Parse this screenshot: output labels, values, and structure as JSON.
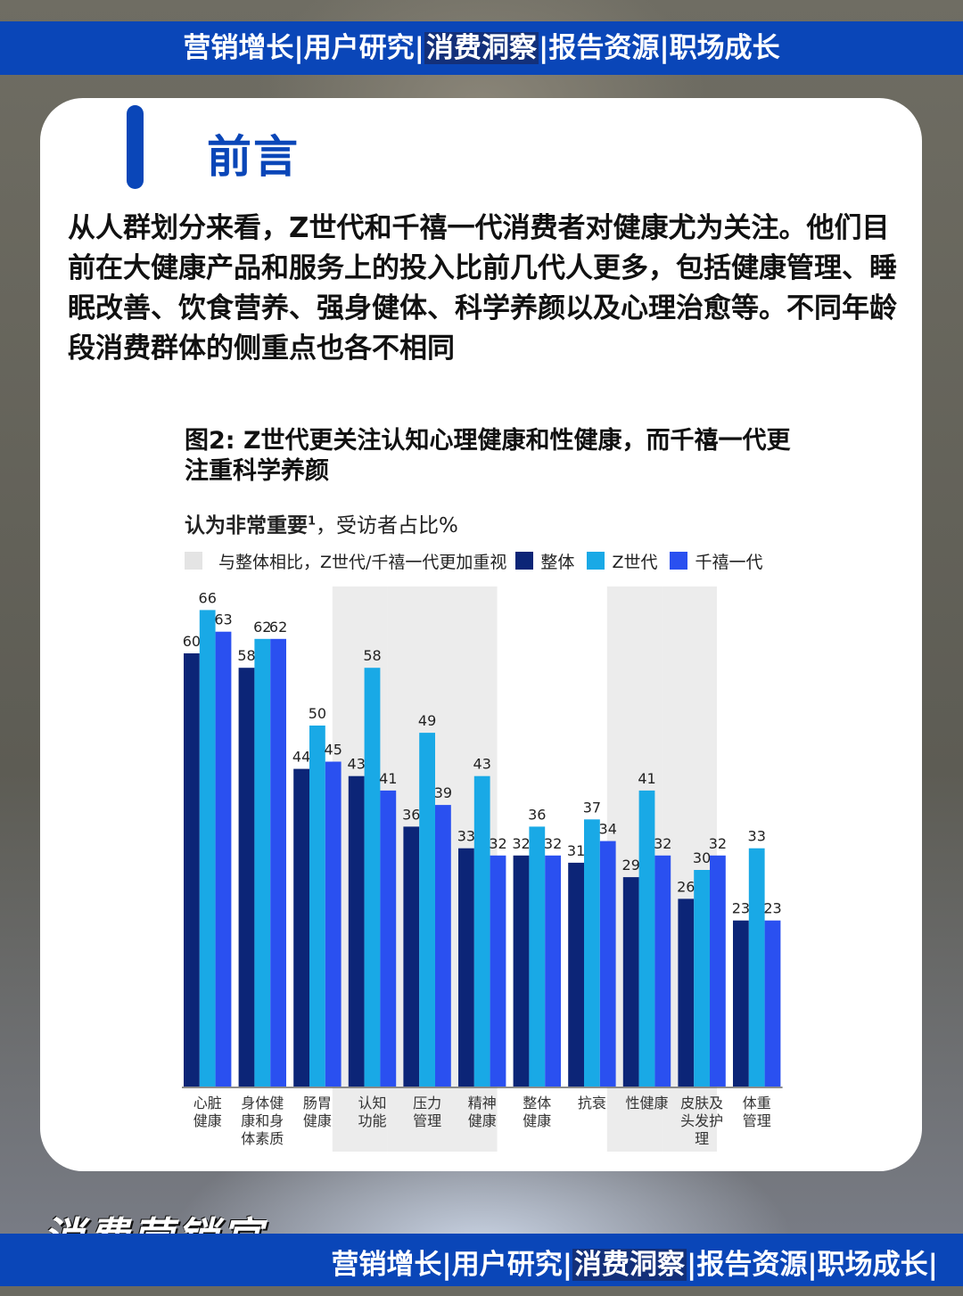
{
  "banner": {
    "pre": "营销增长|用户研究|",
    "highlight": "消费洞察",
    "post": "|报告资源|职场成长",
    "post_bottom": "|报告资源|职场成长|"
  },
  "heading": "前言",
  "intro": "从人群划分来看，Z世代和千禧一代消费者对健康尤为关注。他们目前在大健康产品和服务上的投入比前几代人更多，包括健康管理、睡眠改善、饮食营养、强身健体、科学养颜以及心理治愈等。不同年龄段消费群体的侧重点也各不相同",
  "watermark": "消费营销官",
  "colors": {
    "banner": "#0a46b8",
    "overall": "#0c2577",
    "genz": "#19a9e6",
    "millennial": "#2a50f0",
    "highlight_band": "#ececec"
  },
  "chart_data": {
    "type": "bar",
    "title": "图2: Z世代更关注认知心理健康和性健康，而千禧一代更注重科学养颜",
    "subtitle": "认为非常重要",
    "subtitle_sup": "1",
    "subtitle_unit": "，受访者占比%",
    "legend": {
      "highlight": "与整体相比，Z世代/千禧一代更加重视",
      "position": "top"
    },
    "categories": [
      [
        "心脏",
        "健康"
      ],
      [
        "身体健",
        "康和身",
        "体素质"
      ],
      [
        "肠胃",
        "健康"
      ],
      [
        "认知",
        "功能"
      ],
      [
        "压力",
        "管理"
      ],
      [
        "精神",
        "健康"
      ],
      [
        "整体",
        "健康"
      ],
      [
        "抗衰"
      ],
      [
        "性健康"
      ],
      [
        "皮肤及",
        "头发护",
        "理"
      ],
      [
        "体重",
        "管理"
      ]
    ],
    "series": [
      {
        "name": "整体",
        "values": [
          60,
          58,
          44,
          43,
          36,
          33,
          32,
          31,
          29,
          26,
          23
        ]
      },
      {
        "name": "Z世代",
        "values": [
          66,
          62,
          50,
          58,
          49,
          43,
          36,
          37,
          41,
          30,
          33
        ]
      },
      {
        "name": "千禧一代",
        "values": [
          63,
          62,
          45,
          41,
          39,
          32,
          32,
          34,
          32,
          32,
          23
        ]
      }
    ],
    "highlighted_categories": [
      3,
      4,
      5,
      8,
      9
    ],
    "ylim": [
      0,
      70
    ],
    "grid": false
  }
}
